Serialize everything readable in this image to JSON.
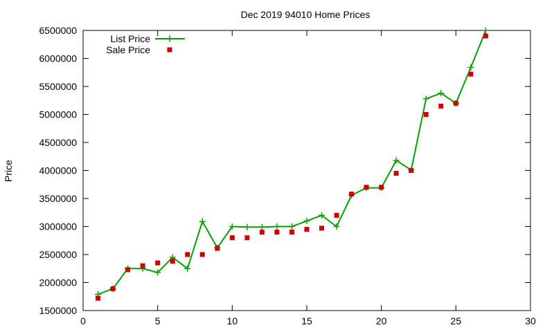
{
  "chart_data": {
    "type": "line",
    "title": "Dec 2019 94010 Home Prices",
    "xlabel": "",
    "ylabel": "Price",
    "xlim": [
      0,
      30
    ],
    "ylim": [
      1500000,
      6500000
    ],
    "xticks": [
      0,
      5,
      10,
      15,
      20,
      25,
      30
    ],
    "yticks": [
      1500000,
      2000000,
      2500000,
      3000000,
      3500000,
      4000000,
      4500000,
      5000000,
      5500000,
      6000000,
      6500000
    ],
    "grid": false,
    "legend_position": "top-left",
    "series": [
      {
        "name": "List Price",
        "style": "line+points",
        "color": "#00a000",
        "x": [
          1,
          2,
          3,
          4,
          5,
          6,
          7,
          8,
          9,
          10,
          11,
          12,
          13,
          14,
          15,
          16,
          17,
          18,
          19,
          20,
          21,
          22,
          23,
          24,
          25,
          26,
          27
        ],
        "y": [
          1790000,
          1890000,
          2250000,
          2250000,
          2180000,
          2450000,
          2250000,
          3090000,
          2620000,
          3000000,
          2990000,
          2990000,
          3000000,
          3000000,
          3100000,
          3200000,
          3000000,
          3560000,
          3690000,
          3690000,
          4180000,
          4010000,
          5280000,
          5380000,
          5200000,
          5840000,
          6500000
        ]
      },
      {
        "name": "Sale Price",
        "style": "points",
        "color": "#cc0000",
        "x": [
          1,
          2,
          3,
          4,
          5,
          6,
          7,
          8,
          9,
          10,
          11,
          12,
          13,
          14,
          15,
          16,
          17,
          18,
          19,
          20,
          21,
          22,
          23,
          24,
          25,
          26,
          27
        ],
        "y": [
          1720000,
          1890000,
          2230000,
          2300000,
          2350000,
          2380000,
          2500000,
          2500000,
          2610000,
          2800000,
          2800000,
          2900000,
          2900000,
          2900000,
          2950000,
          2970000,
          3200000,
          3580000,
          3700000,
          3700000,
          3950000,
          4000000,
          5000000,
          5150000,
          5200000,
          5720000,
          6400000
        ]
      }
    ]
  }
}
